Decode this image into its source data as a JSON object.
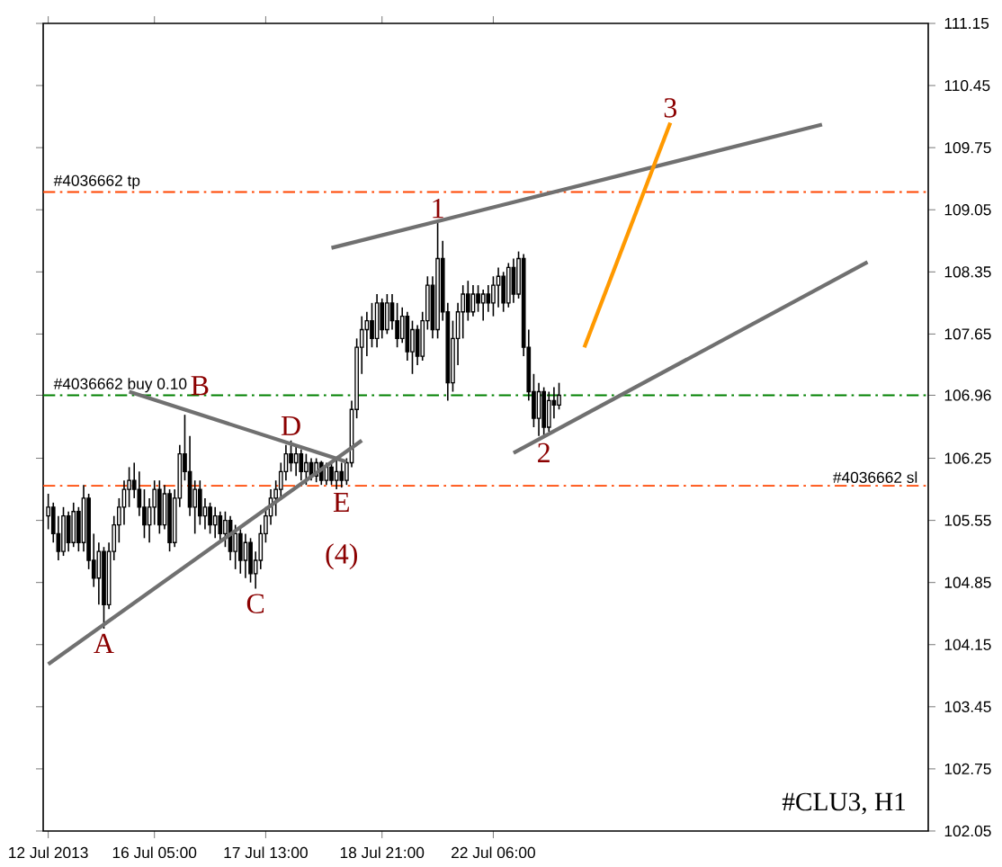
{
  "chart_data": {
    "type": "candlestick",
    "title": "#CLU3, H1",
    "categories": [
      "12 Jul 2013",
      null,
      null,
      null,
      null,
      null,
      null,
      null,
      null,
      null,
      null,
      null,
      null,
      null,
      null,
      null,
      null,
      null,
      null,
      null,
      null,
      "16 Jul 05:00",
      null,
      null,
      null,
      null,
      null,
      null,
      null,
      null,
      null,
      null,
      null,
      null,
      null,
      null,
      null,
      null,
      null,
      null,
      null,
      null,
      null,
      "17 Jul 13:00",
      null,
      null,
      null,
      null,
      null,
      null,
      null,
      null,
      null,
      null,
      null,
      null,
      null,
      null,
      null,
      null,
      null,
      null,
      null,
      null,
      null,
      null,
      "18 Jul 21:00",
      null,
      null,
      null,
      null,
      null,
      null,
      null,
      null,
      null,
      null,
      null,
      null,
      null,
      null,
      null,
      null,
      null,
      null,
      null,
      null,
      null,
      "22 Jul 06:00",
      null,
      null,
      null,
      null,
      null,
      null,
      null,
      null,
      null,
      null,
      null,
      null,
      null,
      null,
      null,
      null,
      null,
      null,
      null,
      null,
      null,
      null,
      null,
      null,
      null,
      null,
      null,
      null,
      null,
      null,
      null,
      null,
      null,
      null,
      null,
      null,
      null,
      null,
      null,
      null,
      null,
      null,
      null,
      null,
      null,
      null,
      null,
      null,
      null,
      null,
      null,
      null,
      null,
      null,
      null,
      null,
      null,
      null,
      null,
      null,
      null,
      null,
      null,
      null,
      null,
      null,
      null,
      null,
      null,
      null,
      null,
      null,
      null,
      null
    ],
    "ohlc": [
      [
        105.6,
        105.85,
        105.45,
        105.7
      ],
      [
        105.7,
        105.75,
        105.3,
        105.4
      ],
      [
        105.4,
        105.6,
        105.1,
        105.2
      ],
      [
        105.2,
        105.7,
        105.15,
        105.6
      ],
      [
        105.6,
        105.65,
        105.2,
        105.3
      ],
      [
        105.3,
        105.75,
        105.25,
        105.65
      ],
      [
        105.65,
        105.7,
        105.2,
        105.3
      ],
      [
        105.3,
        105.95,
        105.2,
        105.8
      ],
      [
        105.8,
        105.85,
        105.0,
        105.1
      ],
      [
        105.1,
        105.4,
        104.8,
        104.9
      ],
      [
        104.9,
        105.3,
        104.6,
        105.2
      ],
      [
        105.2,
        105.25,
        104.33,
        104.6
      ],
      [
        104.6,
        105.3,
        104.55,
        105.2
      ],
      [
        105.2,
        105.6,
        105.1,
        105.5
      ],
      [
        105.5,
        105.8,
        105.3,
        105.7
      ],
      [
        105.7,
        106.0,
        105.5,
        105.9
      ],
      [
        105.9,
        106.15,
        105.7,
        106.0
      ],
      [
        106.0,
        106.2,
        105.8,
        105.9
      ],
      [
        105.9,
        106.1,
        105.6,
        105.7
      ],
      [
        105.7,
        105.9,
        105.35,
        105.5
      ],
      [
        105.5,
        105.8,
        105.3,
        105.7
      ],
      [
        105.7,
        106.0,
        105.5,
        105.9
      ],
      [
        105.9,
        106.0,
        105.4,
        105.5
      ],
      [
        105.5,
        105.95,
        105.45,
        105.85
      ],
      [
        105.85,
        105.9,
        105.2,
        105.3
      ],
      [
        105.3,
        105.9,
        105.25,
        105.8
      ],
      [
        105.8,
        106.4,
        105.7,
        106.3
      ],
      [
        106.3,
        106.74,
        106.0,
        106.1
      ],
      [
        106.1,
        106.5,
        105.6,
        105.7
      ],
      [
        105.7,
        106.0,
        105.4,
        105.9
      ],
      [
        105.9,
        106.0,
        105.5,
        105.6
      ],
      [
        105.6,
        105.8,
        105.45,
        105.7
      ],
      [
        105.7,
        105.75,
        105.4,
        105.5
      ],
      [
        105.5,
        105.7,
        105.35,
        105.6
      ],
      [
        105.6,
        105.65,
        105.3,
        105.4
      ],
      [
        105.4,
        105.65,
        105.25,
        105.55
      ],
      [
        105.55,
        105.6,
        105.1,
        105.2
      ],
      [
        105.2,
        105.5,
        105.0,
        105.4
      ],
      [
        105.4,
        105.45,
        104.95,
        105.1
      ],
      [
        105.1,
        105.4,
        104.9,
        105.3
      ],
      [
        105.3,
        105.35,
        104.85,
        104.95
      ],
      [
        104.95,
        105.2,
        104.78,
        105.1
      ],
      [
        105.1,
        105.5,
        105.0,
        105.4
      ],
      [
        105.4,
        105.7,
        105.3,
        105.6
      ],
      [
        105.6,
        105.9,
        105.5,
        105.8
      ],
      [
        105.8,
        106.0,
        105.6,
        105.9
      ],
      [
        105.9,
        106.2,
        105.8,
        106.1
      ],
      [
        106.1,
        106.4,
        106.0,
        106.3
      ],
      [
        106.3,
        106.45,
        106.1,
        106.2
      ],
      [
        106.2,
        106.4,
        106.05,
        106.3
      ],
      [
        106.3,
        106.35,
        106.0,
        106.1
      ],
      [
        106.1,
        106.3,
        105.95,
        106.2
      ],
      [
        106.2,
        106.25,
        106.0,
        106.05
      ],
      [
        106.05,
        106.25,
        105.98,
        106.2
      ],
      [
        106.2,
        106.22,
        105.95,
        106.0
      ],
      [
        106.0,
        106.2,
        105.95,
        106.15
      ],
      [
        106.15,
        106.2,
        105.95,
        106.0
      ],
      [
        106.0,
        106.25,
        105.9,
        106.1
      ],
      [
        106.1,
        106.2,
        105.92,
        106.0
      ],
      [
        106.0,
        106.25,
        105.95,
        106.2
      ],
      [
        106.2,
        106.9,
        106.15,
        106.8
      ],
      [
        106.8,
        107.6,
        106.7,
        107.5
      ],
      [
        107.5,
        107.85,
        107.2,
        107.7
      ],
      [
        107.7,
        107.9,
        107.4,
        107.8
      ],
      [
        107.8,
        108.0,
        107.5,
        107.6
      ],
      [
        107.6,
        108.1,
        107.5,
        108.0
      ],
      [
        108.0,
        108.05,
        107.6,
        107.7
      ],
      [
        107.7,
        108.1,
        107.65,
        108.0
      ],
      [
        108.0,
        108.1,
        107.7,
        107.8
      ],
      [
        107.8,
        108.0,
        107.5,
        107.6
      ],
      [
        107.6,
        107.95,
        107.55,
        107.85
      ],
      [
        107.85,
        107.9,
        107.35,
        107.45
      ],
      [
        107.45,
        107.8,
        107.2,
        107.7
      ],
      [
        107.7,
        107.75,
        107.3,
        107.4
      ],
      [
        107.4,
        107.9,
        107.35,
        107.8
      ],
      [
        107.8,
        108.3,
        107.7,
        108.2
      ],
      [
        108.2,
        108.3,
        107.6,
        107.7
      ],
      [
        107.7,
        108.9,
        107.6,
        108.5
      ],
      [
        108.5,
        108.7,
        107.8,
        107.9
      ],
      [
        107.9,
        108.0,
        106.9,
        107.1
      ],
      [
        107.1,
        107.8,
        107.0,
        107.6
      ],
      [
        107.6,
        108.0,
        107.3,
        107.9
      ],
      [
        107.9,
        108.2,
        107.6,
        108.1
      ],
      [
        108.1,
        108.25,
        107.8,
        107.9
      ],
      [
        107.9,
        108.2,
        107.85,
        108.1
      ],
      [
        108.1,
        108.2,
        107.9,
        108.0
      ],
      [
        108.0,
        108.15,
        107.8,
        108.1
      ],
      [
        108.1,
        108.2,
        107.9,
        108.0
      ],
      [
        108.0,
        108.3,
        107.85,
        108.2
      ],
      [
        108.2,
        108.4,
        107.95,
        108.3
      ],
      [
        108.3,
        108.35,
        107.9,
        108.0
      ],
      [
        108.0,
        108.45,
        107.95,
        108.4
      ],
      [
        108.4,
        108.5,
        108.0,
        108.1
      ],
      [
        108.1,
        108.58,
        108.05,
        108.5
      ],
      [
        108.5,
        108.55,
        107.4,
        107.5
      ],
      [
        107.5,
        107.7,
        106.9,
        107.0
      ],
      [
        107.0,
        107.2,
        106.6,
        106.7
      ],
      [
        106.7,
        107.1,
        106.5,
        107.0
      ],
      [
        107.0,
        107.05,
        106.48,
        106.6
      ],
      [
        106.6,
        107.0,
        106.55,
        106.9
      ],
      [
        106.9,
        107.05,
        106.7,
        106.85
      ],
      [
        106.85,
        107.1,
        106.8,
        106.96
      ],
      null,
      null,
      null,
      null,
      null,
      null,
      null,
      null,
      null,
      null,
      null,
      null,
      null,
      null,
      null,
      null,
      null,
      null,
      null,
      null,
      null,
      null,
      null,
      null,
      null,
      null,
      null,
      null,
      null,
      null,
      null,
      null,
      null,
      null,
      null,
      null,
      null,
      null,
      null,
      null,
      null,
      null,
      null,
      null,
      null,
      null,
      null,
      null,
      null,
      null,
      null,
      null,
      null,
      null,
      null,
      null,
      null,
      null,
      null,
      null,
      null
    ],
    "ylim": [
      102.05,
      111.15
    ],
    "yticks": [
      102.05,
      102.75,
      103.45,
      104.15,
      104.85,
      105.55,
      106.25,
      106.96,
      107.65,
      108.35,
      109.05,
      109.75,
      110.45,
      111.15
    ],
    "series": [
      {
        "type": "line",
        "color": "#707070",
        "values": [
          103.93,
          null,
          null,
          null,
          null,
          null,
          null,
          null,
          null,
          null,
          null,
          null,
          null,
          null,
          null,
          null,
          null,
          null,
          null,
          null,
          null,
          null,
          null,
          null,
          null,
          null,
          null,
          null,
          null,
          null,
          null,
          null,
          null,
          null,
          null,
          null,
          null,
          null,
          null,
          null,
          null,
          null,
          null,
          null,
          null,
          null,
          null,
          null,
          null,
          null,
          null,
          null,
          null,
          null,
          null,
          null,
          null,
          null,
          null,
          null,
          null,
          null,
          106.45,
          null,
          null,
          null,
          null,
          null,
          null,
          null,
          null,
          null,
          null,
          null,
          null,
          null,
          null,
          null,
          null,
          null,
          null,
          null,
          null,
          null,
          null,
          null,
          null,
          null,
          null,
          null,
          null,
          null,
          null,
          null,
          null,
          null,
          null,
          null,
          null,
          null,
          null,
          null,
          null,
          null,
          null,
          null,
          null,
          null,
          null,
          null,
          null,
          null,
          null,
          null,
          null,
          null,
          null,
          null,
          null,
          null,
          null,
          null,
          null,
          null,
          null,
          null,
          null,
          null,
          null,
          null,
          null,
          null,
          null,
          null,
          null,
          null,
          null,
          null,
          null,
          null,
          null,
          null,
          null,
          null,
          null,
          null,
          null,
          null,
          null,
          null,
          null,
          null,
          null,
          null,
          null,
          null,
          null,
          null,
          null,
          null,
          null,
          null,
          null
        ]
      },
      {
        "type": "line",
        "color": "#707070",
        "values": [
          null,
          null,
          null,
          null,
          null,
          null,
          null,
          null,
          null,
          null,
          null,
          null,
          null,
          null,
          null,
          null,
          107.0,
          null,
          null,
          null,
          null,
          null,
          null,
          null,
          null,
          null,
          null,
          null,
          null,
          null,
          null,
          null,
          null,
          null,
          null,
          null,
          null,
          null,
          null,
          null,
          null,
          null,
          null,
          null,
          null,
          null,
          null,
          null,
          null,
          null,
          null,
          null,
          null,
          null,
          null,
          null,
          null,
          null,
          null,
          106.21,
          null,
          null,
          null,
          null,
          null,
          null,
          null,
          null,
          null,
          null,
          null,
          null,
          null,
          null,
          null,
          null,
          null,
          null,
          null,
          null,
          null,
          null,
          null,
          null,
          null,
          null,
          null,
          null,
          null,
          null,
          null,
          null,
          null,
          null,
          null,
          null,
          null,
          null,
          null,
          null,
          null,
          null,
          null,
          null,
          null,
          null,
          null,
          null,
          null,
          null,
          null,
          null,
          null,
          null,
          null,
          null,
          null,
          null,
          null,
          null,
          null,
          null,
          null,
          null,
          null,
          null,
          null,
          null,
          null,
          null,
          null,
          null,
          null,
          null,
          null,
          null,
          null,
          null,
          null,
          null,
          null,
          null,
          null,
          null,
          null,
          null,
          null,
          null,
          null,
          null,
          null,
          null,
          null,
          null,
          null,
          null,
          null,
          null,
          null,
          null,
          null,
          null,
          null
        ]
      },
      {
        "type": "line",
        "color": "#707070",
        "values": [
          null,
          null,
          null,
          null,
          null,
          null,
          null,
          null,
          null,
          null,
          null,
          null,
          null,
          null,
          null,
          null,
          null,
          null,
          null,
          null,
          null,
          null,
          null,
          null,
          null,
          null,
          null,
          null,
          null,
          null,
          null,
          null,
          null,
          null,
          null,
          null,
          null,
          null,
          null,
          null,
          null,
          null,
          null,
          null,
          null,
          null,
          null,
          null,
          null,
          null,
          null,
          null,
          null,
          null,
          null,
          null,
          108.62,
          null,
          null,
          null,
          null,
          null,
          null,
          null,
          null,
          null,
          null,
          null,
          null,
          null,
          null,
          null,
          null,
          null,
          null,
          null,
          null,
          null,
          null,
          null,
          null,
          null,
          null,
          null,
          null,
          null,
          null,
          null,
          null,
          null,
          null,
          null,
          null,
          null,
          null,
          null,
          null,
          null,
          null,
          null,
          null,
          null,
          null,
          null,
          null,
          null,
          null,
          null,
          null,
          null,
          null,
          null,
          null,
          null,
          null,
          null,
          null,
          null,
          null,
          null,
          null,
          null,
          null,
          null,
          null,
          null,
          null,
          null,
          null,
          null,
          null,
          null,
          null,
          null,
          null,
          null,
          null,
          null,
          null,
          null,
          null,
          null,
          null,
          null,
          null,
          null,
          null,
          null,
          null,
          null,
          null,
          null,
          null,
          110.01,
          null,
          null,
          null,
          null,
          null,
          null,
          null,
          null,
          null
        ]
      },
      {
        "type": "line",
        "color": "#707070",
        "values": [
          null,
          null,
          null,
          null,
          null,
          null,
          null,
          null,
          null,
          null,
          null,
          null,
          null,
          null,
          null,
          null,
          null,
          null,
          null,
          null,
          null,
          null,
          null,
          null,
          null,
          null,
          null,
          null,
          null,
          null,
          null,
          null,
          null,
          null,
          null,
          null,
          null,
          null,
          null,
          null,
          null,
          null,
          null,
          null,
          null,
          null,
          null,
          null,
          null,
          null,
          null,
          null,
          null,
          null,
          null,
          null,
          null,
          null,
          null,
          null,
          null,
          null,
          null,
          null,
          null,
          null,
          null,
          null,
          null,
          null,
          null,
          null,
          null,
          null,
          null,
          null,
          null,
          null,
          null,
          null,
          null,
          null,
          null,
          null,
          null,
          null,
          null,
          null,
          null,
          null,
          null,
          null,
          106.31,
          null,
          null,
          null,
          null,
          null,
          null,
          null,
          null,
          null,
          null,
          null,
          null,
          null,
          null,
          null,
          null,
          null,
          null,
          null,
          null,
          null,
          null,
          null,
          null,
          null,
          null,
          null,
          null,
          null,
          null,
          null,
          null,
          null,
          null,
          null,
          null,
          null,
          null,
          null,
          null,
          null,
          null,
          null,
          null,
          null,
          null,
          null,
          null,
          null,
          null,
          null,
          null,
          null,
          null,
          null,
          null,
          null,
          null,
          null,
          null,
          null,
          null,
          null,
          null,
          null,
          null,
          null,
          null,
          null,
          108.46
        ]
      },
      {
        "type": "line",
        "color": "#ff9900",
        "values": [
          null,
          null,
          null,
          null,
          null,
          null,
          null,
          null,
          null,
          null,
          null,
          null,
          null,
          null,
          null,
          null,
          null,
          null,
          null,
          null,
          null,
          null,
          null,
          null,
          null,
          null,
          null,
          null,
          null,
          null,
          null,
          null,
          null,
          null,
          null,
          null,
          null,
          null,
          null,
          null,
          null,
          null,
          null,
          null,
          null,
          null,
          null,
          null,
          null,
          null,
          null,
          null,
          null,
          null,
          null,
          null,
          null,
          null,
          null,
          null,
          null,
          null,
          null,
          null,
          null,
          null,
          null,
          null,
          null,
          null,
          null,
          null,
          null,
          null,
          null,
          null,
          null,
          null,
          null,
          null,
          null,
          null,
          null,
          null,
          null,
          null,
          null,
          null,
          null,
          null,
          null,
          null,
          null,
          null,
          null,
          null,
          null,
          null,
          null,
          null,
          null,
          null,
          null,
          null,
          null,
          null,
          107.5,
          null,
          null,
          null,
          null,
          null,
          null,
          null,
          null,
          null,
          null,
          null,
          null,
          null,
          null,
          null,
          null,
          110.03,
          null,
          null,
          null,
          null,
          null,
          null,
          null,
          null,
          null,
          null,
          null,
          null,
          null,
          null,
          null,
          null,
          null,
          null,
          null,
          null,
          null,
          null,
          null,
          null,
          null,
          null,
          null,
          null,
          null,
          null,
          null,
          null,
          null,
          null,
          null,
          null,
          null,
          null,
          null
        ]
      }
    ],
    "ref_lines": [
      {
        "axis": "y",
        "value": 109.25,
        "label": "#4036662 tp",
        "color": "#ff4500",
        "line_style": "dashed"
      },
      {
        "axis": "y",
        "value": 106.96,
        "label": "#4036662 buy 0.10",
        "color": "#008000",
        "line_style": "dashed"
      },
      {
        "axis": "y",
        "value": 105.94,
        "label": "#4036662 sl",
        "color": "#ff4500",
        "line_style": "dashed"
      }
    ],
    "annotations": [
      {
        "text": "A",
        "y": 104.33
      },
      {
        "text": "B",
        "y": 106.74
      },
      {
        "text": "C",
        "y": 104.78
      },
      {
        "text": "D",
        "y": 106.45
      },
      {
        "text": "E",
        "y": 105.92
      },
      "(4)",
      {
        "text": "1",
        "y": 108.9
      },
      {
        "text": "2",
        "y": 106.48
      },
      {
        "text": "3",
        "y": 110.03
      }
    ]
  }
}
